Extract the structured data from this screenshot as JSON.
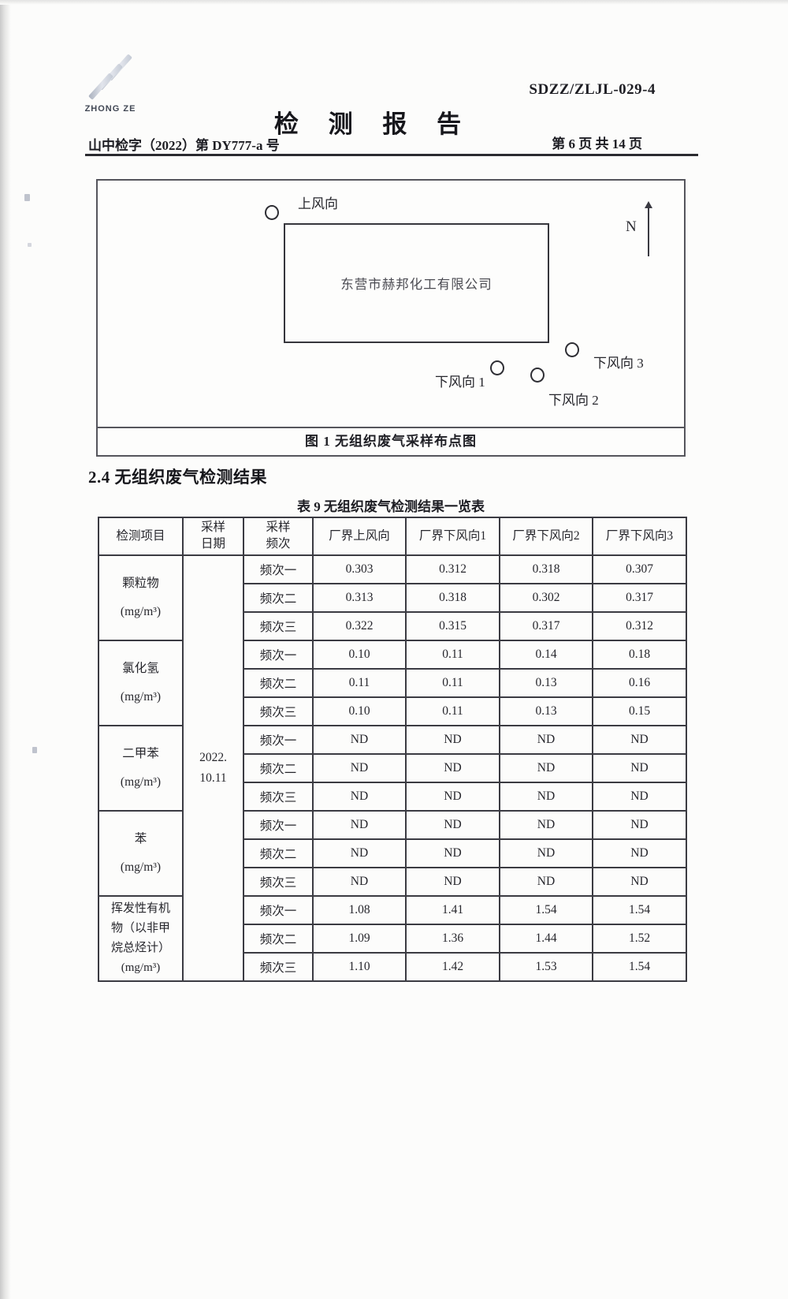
{
  "header": {
    "logo_text": "ZHONG ZE",
    "doc_code": "SDZZ/ZLJL-029-4",
    "title": "检 测 报 告",
    "ref_no": "山中检字（2022）第 DY777-a 号",
    "page_label": "第 6 页  共 14 页"
  },
  "figure": {
    "upwind_label": "上风向",
    "company_name": "东营市赫邦化工有限公司",
    "north_label": "N",
    "downwind_labels": [
      "下风向 1",
      "下风向 2",
      "下风向 3"
    ],
    "caption": "图 1  无组织废气采样布点图"
  },
  "section_heading": "2.4 无组织废气检测结果",
  "table": {
    "title": "表 9  无组织废气检测结果一览表",
    "headers": [
      "检测项目",
      "采样\n日期",
      "采样\n频次",
      "厂界上风向",
      "厂界下风向1",
      "厂界下风向2",
      "厂界下风向3"
    ],
    "sample_date": "2022.\n10.11",
    "freq_labels": [
      "频次一",
      "频次二",
      "频次三"
    ],
    "groups": [
      {
        "item": "颗粒物\n(mg/m³)",
        "rows": [
          [
            "0.303",
            "0.312",
            "0.318",
            "0.307"
          ],
          [
            "0.313",
            "0.318",
            "0.302",
            "0.317"
          ],
          [
            "0.322",
            "0.315",
            "0.317",
            "0.312"
          ]
        ]
      },
      {
        "item": "氯化氢\n(mg/m³)",
        "rows": [
          [
            "0.10",
            "0.11",
            "0.14",
            "0.18"
          ],
          [
            "0.11",
            "0.11",
            "0.13",
            "0.16"
          ],
          [
            "0.10",
            "0.11",
            "0.13",
            "0.15"
          ]
        ]
      },
      {
        "item": "二甲苯\n(mg/m³)",
        "rows": [
          [
            "ND",
            "ND",
            "ND",
            "ND"
          ],
          [
            "ND",
            "ND",
            "ND",
            "ND"
          ],
          [
            "ND",
            "ND",
            "ND",
            "ND"
          ]
        ]
      },
      {
        "item": "苯\n(mg/m³)",
        "rows": [
          [
            "ND",
            "ND",
            "ND",
            "ND"
          ],
          [
            "ND",
            "ND",
            "ND",
            "ND"
          ],
          [
            "ND",
            "ND",
            "ND",
            "ND"
          ]
        ]
      },
      {
        "item": "挥发性有机\n物（以非甲\n烷总烃计）\n(mg/m³)",
        "rows": [
          [
            "1.08",
            "1.41",
            "1.54",
            "1.54"
          ],
          [
            "1.09",
            "1.36",
            "1.44",
            "1.52"
          ],
          [
            "1.10",
            "1.42",
            "1.53",
            "1.54"
          ]
        ]
      }
    ]
  }
}
